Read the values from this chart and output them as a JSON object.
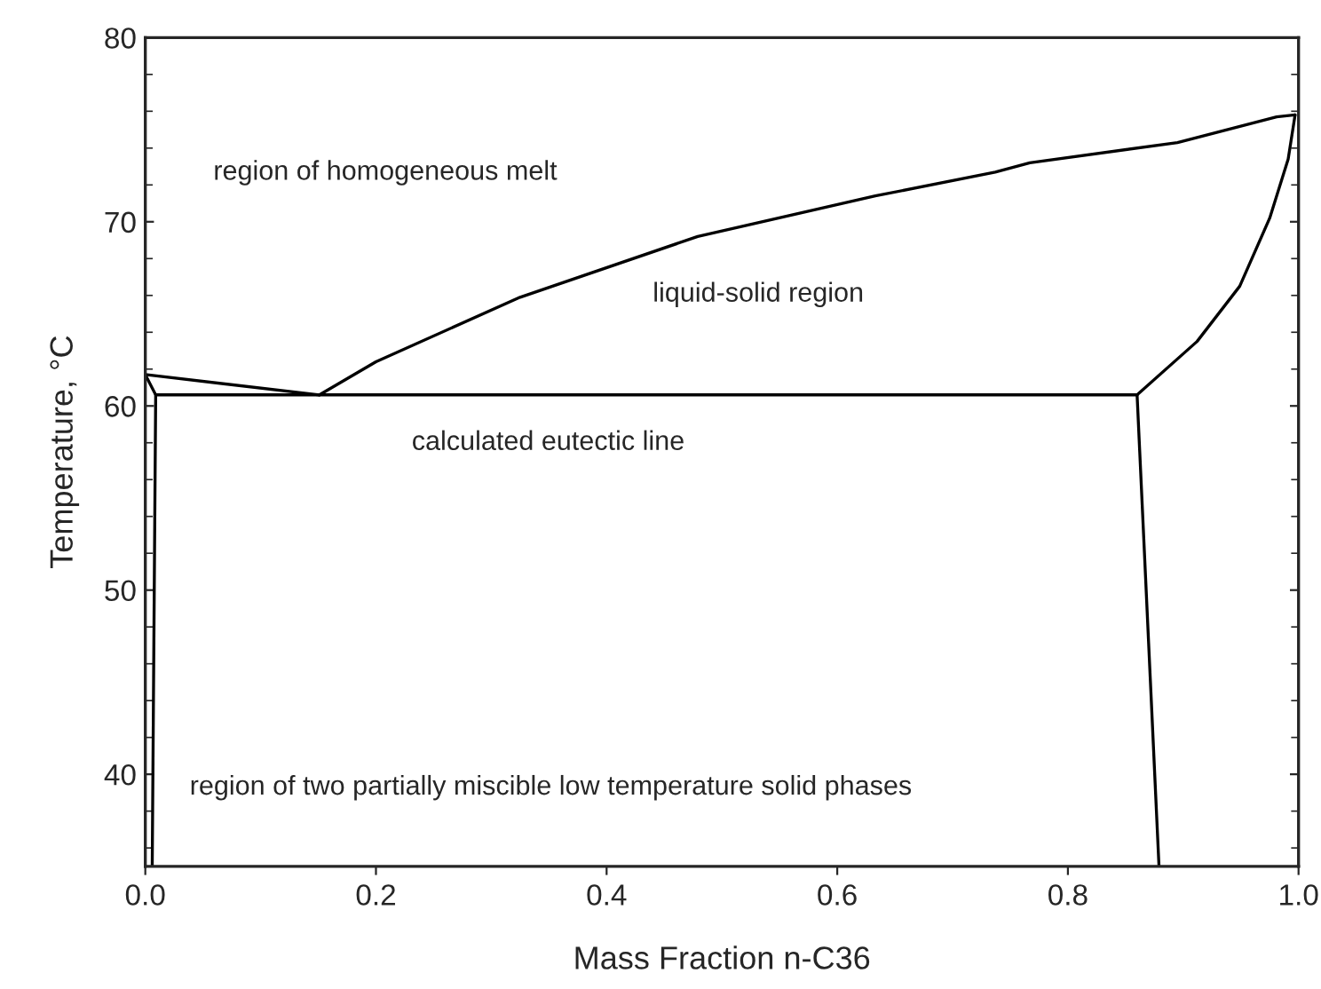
{
  "chart_data": {
    "type": "line",
    "xlabel": "Mass Fraction n-C36",
    "ylabel": "Temperature, °C",
    "xlim": [
      0.0,
      1.0
    ],
    "xticks": [
      {
        "value": 0.0,
        "label": "0.0"
      },
      0.2,
      0.4,
      0.6,
      0.8,
      {
        "value": 1.0,
        "label": "1.0"
      }
    ],
    "ylim": [
      35,
      80
    ],
    "yticks": [
      40,
      50,
      60,
      70,
      80
    ],
    "grid": false,
    "legend": false,
    "marker": "none",
    "line_style": "solid",
    "series": [
      {
        "color": "#000000",
        "x": [
          0.0,
          0.151
        ],
        "values": [
          61.7,
          60.6
        ]
      },
      {
        "color": "#000000",
        "x": [
          0.151,
          0.2,
          0.325,
          0.479,
          0.633,
          0.737,
          0.767,
          0.895,
          0.981,
          0.997
        ],
        "values": [
          60.6,
          62.4,
          65.9,
          69.2,
          71.4,
          72.7,
          73.2,
          74.3,
          75.7,
          75.8
        ]
      },
      {
        "color": "#000000",
        "x": [
          0.86,
          0.912,
          0.949,
          0.975,
          0.991,
          0.997
        ],
        "values": [
          60.6,
          63.5,
          66.5,
          70.2,
          73.4,
          75.8
        ]
      },
      {
        "color": "#000000",
        "x": [
          0.009,
          0.86
        ],
        "values": [
          60.6,
          60.6
        ]
      },
      {
        "color": "#000000",
        "x": [
          0.86,
          0.879
        ],
        "values": [
          60.6,
          35.0
        ]
      },
      {
        "color": "#000000",
        "x": [
          0.0,
          0.009,
          0.006
        ],
        "values": [
          61.7,
          60.6,
          35.0
        ]
      }
    ],
    "annotations": [
      "region of homogeneous melt",
      "liquid-solid region",
      "calculated eutectic line",
      "region of two partially miscible low temperature solid phases"
    ]
  }
}
